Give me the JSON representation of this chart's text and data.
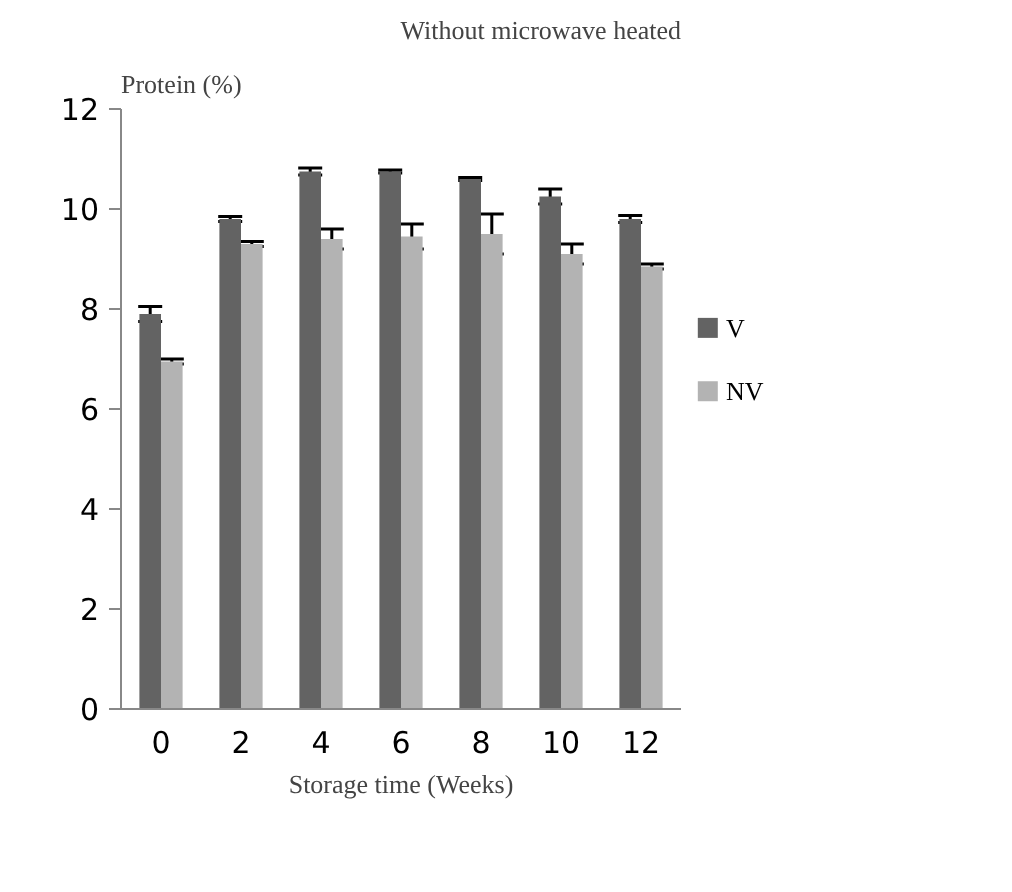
{
  "chart_data": {
    "type": "bar",
    "title": "Without microwave heated",
    "ylabel": "Protein (%)",
    "xlabel": "Storage time (Weeks)",
    "categories": [
      "0",
      "2",
      "4",
      "6",
      "8",
      "10",
      "12"
    ],
    "series": [
      {
        "name": "V",
        "color": "#636363",
        "values": [
          7.9,
          9.8,
          10.75,
          10.75,
          10.6,
          10.25,
          9.8
        ],
        "errors": [
          0.15,
          0.05,
          0.07,
          0.03,
          0.03,
          0.15,
          0.07
        ]
      },
      {
        "name": "NV",
        "color": "#b3b3b3",
        "values": [
          6.95,
          9.3,
          9.4,
          9.45,
          9.5,
          9.1,
          8.85
        ],
        "errors": [
          0.05,
          0.05,
          0.2,
          0.25,
          0.4,
          0.2,
          0.05
        ]
      }
    ],
    "ylim": [
      0,
      12
    ],
    "yticks": [
      0,
      2,
      4,
      6,
      8,
      10,
      12
    ],
    "grid": false,
    "legend": "right"
  }
}
